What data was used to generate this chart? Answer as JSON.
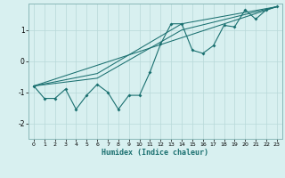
{
  "xlabel": "Humidex (Indice chaleur)",
  "ylabel": "",
  "background_color": "#d8f0f0",
  "grid_color": "#b8d8d8",
  "line_color": "#1a7070",
  "xlim": [
    -0.5,
    23.5
  ],
  "ylim": [
    -2.5,
    1.85
  ],
  "yticks": [
    -2,
    -1,
    0,
    1
  ],
  "xticks": [
    0,
    1,
    2,
    3,
    4,
    5,
    6,
    7,
    8,
    9,
    10,
    11,
    12,
    13,
    14,
    15,
    16,
    17,
    18,
    19,
    20,
    21,
    22,
    23
  ],
  "series": [
    [
      0,
      -0.8,
      1,
      -1.2,
      2,
      -1.2,
      3,
      -0.9,
      4,
      -1.55,
      5,
      -1.1,
      6,
      -0.75,
      7,
      -1.0,
      8,
      -1.55,
      9,
      -1.1,
      10,
      -1.1,
      11,
      -0.35,
      12,
      0.55,
      13,
      1.2,
      14,
      1.2,
      15,
      0.35,
      16,
      0.25,
      17,
      0.5,
      18,
      1.15,
      19,
      1.1,
      20,
      1.65,
      21,
      1.35,
      22,
      1.65,
      23,
      1.75
    ],
    [
      0,
      -0.8,
      23,
      1.75
    ],
    [
      0,
      -0.8,
      6,
      -0.4,
      14,
      1.2,
      23,
      1.75
    ],
    [
      0,
      -0.8,
      6,
      -0.55,
      14,
      1.0,
      23,
      1.75
    ]
  ]
}
